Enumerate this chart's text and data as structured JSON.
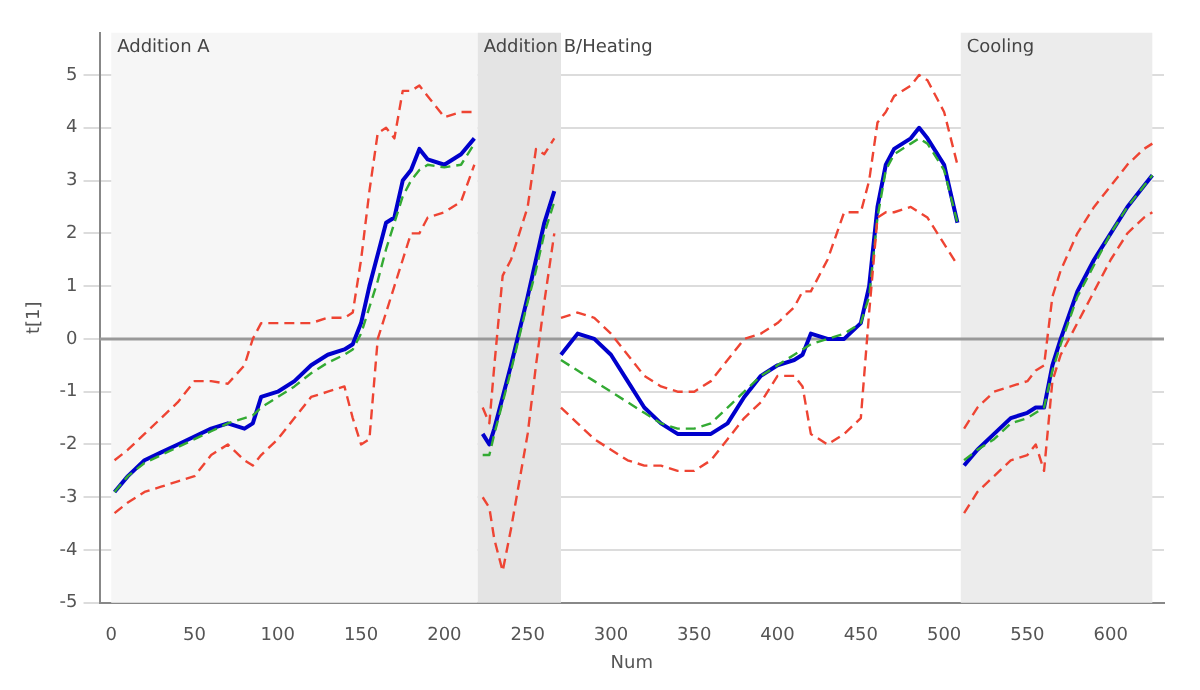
{
  "chart_data": {
    "type": "line",
    "xlabel": "Num",
    "ylabel": "t[1]",
    "x": [
      2,
      10,
      20,
      30,
      40,
      50,
      60,
      70,
      80,
      85,
      90,
      100,
      110,
      120,
      130,
      140,
      145,
      150,
      155,
      160,
      165,
      170,
      175,
      180,
      185,
      190,
      200,
      210,
      218,
      220,
      223,
      227,
      230,
      235,
      240,
      250,
      255,
      260,
      266,
      269,
      270,
      280,
      290,
      300,
      310,
      320,
      330,
      340,
      350,
      360,
      370,
      380,
      390,
      400,
      410,
      415,
      420,
      430,
      440,
      450,
      455,
      460,
      465,
      470,
      480,
      485,
      490,
      500,
      508,
      510,
      512,
      520,
      530,
      540,
      550,
      555,
      560,
      565,
      570,
      580,
      590,
      600,
      610,
      620,
      625
    ],
    "series": [
      {
        "color": "#ee4433",
        "line_style": "dashed",
        "values": [
          -2.3,
          -2.1,
          -1.8,
          -1.5,
          -1.2,
          -0.8,
          -0.8,
          -0.85,
          -0.5,
          0,
          0.3,
          0.3,
          0.3,
          0.3,
          0.4,
          0.4,
          0.5,
          1.5,
          2.8,
          3.9,
          4.0,
          3.8,
          4.7,
          4.7,
          4.8,
          4.6,
          4.2,
          4.3,
          4.3,
          null,
          -1.3,
          -1.6,
          -0.5,
          1.2,
          1.5,
          2.5,
          3.6,
          3.5,
          3.8,
          null,
          0.4,
          0.5,
          0.4,
          0.1,
          -0.3,
          -0.7,
          -0.9,
          -1.0,
          -1.0,
          -0.8,
          -0.4,
          0.0,
          0.1,
          0.3,
          0.6,
          0.9,
          0.9,
          1.5,
          2.4,
          2.4,
          3.0,
          4.1,
          4.3,
          4.6,
          4.8,
          5.0,
          4.9,
          4.3,
          3.3,
          null,
          -1.7,
          -1.3,
          -1.0,
          -0.9,
          -0.8,
          -0.6,
          -0.5,
          0.8,
          1.3,
          2.0,
          2.5,
          2.9,
          3.3,
          3.6,
          3.7
        ]
      },
      {
        "color": "#ee4433",
        "line_style": "dashed",
        "values": [
          -3.3,
          -3.1,
          -2.9,
          -2.8,
          -2.7,
          -2.6,
          -2.2,
          -2.0,
          -2.3,
          -2.4,
          -2.2,
          -1.9,
          -1.5,
          -1.1,
          -1.0,
          -0.9,
          -1.5,
          -2.0,
          -1.9,
          0.0,
          0.5,
          1.0,
          1.5,
          2.0,
          2.0,
          2.3,
          2.4,
          2.6,
          3.3,
          null,
          -3.0,
          -3.2,
          -3.8,
          -4.4,
          -3.6,
          -1.8,
          -0.5,
          0.7,
          2.0,
          null,
          -1.3,
          -1.6,
          -1.9,
          -2.1,
          -2.3,
          -2.4,
          -2.4,
          -2.5,
          -2.5,
          -2.3,
          -1.9,
          -1.5,
          -1.2,
          -0.7,
          -0.7,
          -0.9,
          -1.8,
          -2.0,
          -1.8,
          -1.5,
          0.5,
          2.3,
          2.4,
          2.4,
          2.5,
          2.4,
          2.3,
          1.8,
          1.4,
          null,
          -3.3,
          -2.9,
          -2.6,
          -2.3,
          -2.2,
          -2.0,
          -2.5,
          -0.8,
          -0.3,
          0.3,
          0.9,
          1.5,
          2.0,
          2.3,
          2.4
        ]
      },
      {
        "color": "#33aa33",
        "line_style": "dashed",
        "values": [
          -2.9,
          -2.6,
          -2.35,
          -2.2,
          -2.05,
          -1.9,
          -1.75,
          -1.6,
          -1.5,
          -1.45,
          -1.3,
          -1.1,
          -0.9,
          -0.65,
          -0.45,
          -0.3,
          -0.2,
          0.1,
          0.6,
          1.1,
          1.7,
          2.2,
          2.7,
          3.0,
          3.2,
          3.3,
          3.25,
          3.3,
          3.7,
          null,
          -2.2,
          -2.2,
          -1.8,
          -1.2,
          -0.6,
          0.7,
          1.3,
          2.0,
          2.6,
          null,
          -0.4,
          -0.6,
          -0.8,
          -1.0,
          -1.2,
          -1.4,
          -1.6,
          -1.7,
          -1.7,
          -1.6,
          -1.3,
          -1.0,
          -0.7,
          -0.5,
          -0.3,
          -0.2,
          -0.1,
          0.0,
          0.1,
          0.3,
          0.8,
          2.3,
          3.2,
          3.5,
          3.7,
          3.8,
          3.7,
          3.2,
          2.2,
          null,
          -2.3,
          -2.1,
          -1.9,
          -1.6,
          -1.5,
          -1.4,
          -1.3,
          -0.6,
          -0.1,
          0.8,
          1.4,
          2.0,
          2.5,
          2.9,
          3.1
        ]
      },
      {
        "color": "#0000cc",
        "line_style": "solid",
        "values": [
          -2.9,
          -2.6,
          -2.3,
          -2.15,
          -2.0,
          -1.85,
          -1.7,
          -1.6,
          -1.7,
          -1.6,
          -1.1,
          -1.0,
          -0.8,
          -0.5,
          -0.3,
          -0.2,
          -0.1,
          0.3,
          1.0,
          1.6,
          2.2,
          2.3,
          3.0,
          3.2,
          3.6,
          3.4,
          3.3,
          3.5,
          3.8,
          null,
          -1.8,
          -2.0,
          -1.7,
          -1.1,
          -0.5,
          0.8,
          1.5,
          2.2,
          2.8,
          null,
          -0.3,
          0.1,
          0.0,
          -0.3,
          -0.8,
          -1.3,
          -1.6,
          -1.8,
          -1.8,
          -1.8,
          -1.6,
          -1.1,
          -0.7,
          -0.5,
          -0.4,
          -0.3,
          0.1,
          0.0,
          0.0,
          0.3,
          1.0,
          2.5,
          3.3,
          3.6,
          3.8,
          4.0,
          3.8,
          3.3,
          2.2,
          null,
          -2.4,
          -2.1,
          -1.8,
          -1.5,
          -1.4,
          -1.3,
          -1.3,
          -0.5,
          0.0,
          0.9,
          1.5,
          2.0,
          2.5,
          2.9,
          3.1
        ]
      }
    ],
    "xlim": [
      -7,
      632
    ],
    "xticks": [
      0,
      50,
      100,
      150,
      200,
      250,
      300,
      350,
      400,
      450,
      500,
      550,
      600
    ],
    "ylim": [
      -5,
      5.8
    ],
    "yticks": [
      -5,
      -4,
      -3,
      -2,
      -1,
      0,
      1,
      2,
      3,
      4,
      5
    ],
    "grid": "y",
    "legend": false,
    "marker": "none",
    "ref_lines": [
      {
        "axis": "y",
        "value": 0,
        "color": "#999999"
      }
    ],
    "bands": [
      {
        "axis": "x",
        "from": 0,
        "to": 220,
        "label": "Addition A",
        "color": "#f6f6f6"
      },
      {
        "axis": "x",
        "from": 220,
        "to": 270,
        "label": "Addition B/Heating",
        "color": "#e4e4e4"
      },
      {
        "axis": "x",
        "from": 510,
        "to": 625,
        "label": "Cooling",
        "color": "#ececec"
      }
    ]
  }
}
